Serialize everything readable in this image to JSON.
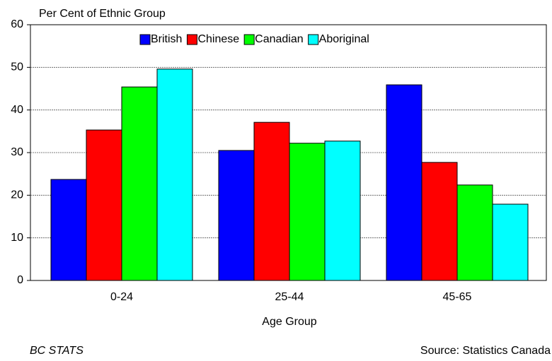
{
  "chart_data": {
    "type": "bar",
    "title": "Per Cent of Ethnic Group",
    "x_label": "Age Group",
    "footer_left": "BC STATS",
    "footer_right": "Source: Statistics Canada",
    "categories": [
      "0-24",
      "25-44",
      "45-65"
    ],
    "series": [
      {
        "name": "British",
        "color": "#0000ff",
        "values": [
          23.7,
          30.5,
          45.9
        ]
      },
      {
        "name": "Chinese",
        "color": "#ff0000",
        "values": [
          35.3,
          37.1,
          27.7
        ]
      },
      {
        "name": "Canadian",
        "color": "#00ff00",
        "values": [
          45.4,
          32.2,
          22.4
        ]
      },
      {
        "name": "Aboriginal",
        "color": "#00ffff",
        "values": [
          49.6,
          32.7,
          17.9
        ]
      }
    ],
    "ylim": [
      0,
      60
    ],
    "yticks": [
      0,
      10,
      20,
      30,
      40,
      50,
      60
    ],
    "grid": true,
    "legend": "top"
  }
}
